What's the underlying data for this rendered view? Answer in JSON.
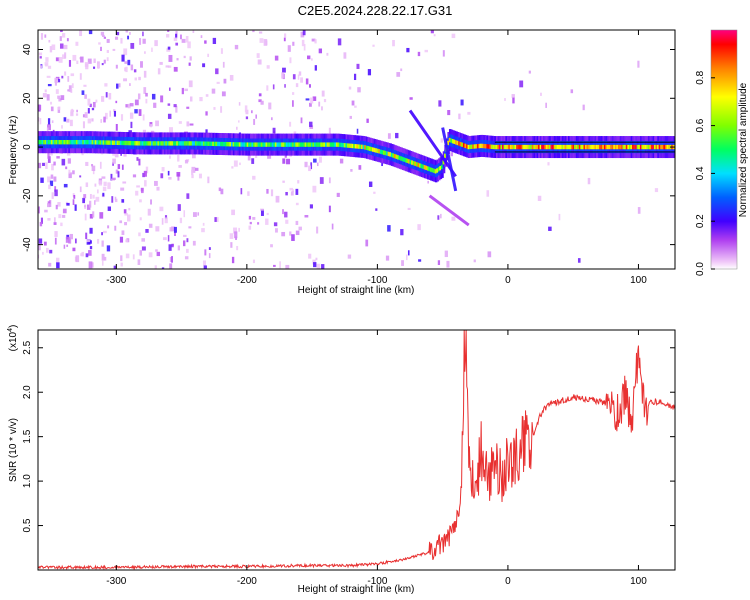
{
  "figure": {
    "title": "C2E5.2024.228.22.17.G31"
  },
  "chart_data": [
    {
      "type": "heatmap",
      "xlabel": "Height of straight line (km)",
      "ylabel": "Frequency (Hz)",
      "xlim": [
        -360,
        128
      ],
      "ylim": [
        -50,
        48
      ],
      "xticks": [
        -300,
        -200,
        -100,
        0,
        100
      ],
      "xtick_labels": [
        "-300",
        "-200",
        "-100",
        "0",
        "100"
      ],
      "yticks": [
        -40,
        -20,
        0,
        20,
        40
      ],
      "ytick_labels": [
        "-40",
        "-20",
        "0",
        "20",
        "40"
      ],
      "grid": false,
      "colorbar": {
        "label": "Normalized spectral amplitude",
        "range": [
          0,
          1
        ],
        "ticks": [
          0.0,
          0.2,
          0.4,
          0.6,
          0.8
        ],
        "tick_labels": [
          "0.0",
          "0.2",
          "0.4",
          "0.6",
          "0.8"
        ],
        "colormap": "rainbow-on-white"
      },
      "ridge": {
        "name": "",
        "x": [
          -360,
          -320,
          -280,
          -240,
          -200,
          -160,
          -130,
          -110,
          -90,
          -70,
          -60,
          -55,
          -50,
          -45,
          -40,
          -35,
          -30,
          -20,
          -10,
          0,
          30,
          60,
          90,
          128
        ],
        "y": [
          2,
          2,
          1.5,
          1.5,
          1,
          1,
          1,
          0,
          -3,
          -7,
          -9,
          -10,
          -8,
          3,
          2,
          1,
          0,
          0.5,
          0,
          0,
          0,
          0,
          0,
          0
        ]
      }
    },
    {
      "type": "line",
      "xlabel": "Height of straight line (km)",
      "ylabel": "SNR (10 * v/v)",
      "yscale_label": "(x10",
      "yscale_exp": "4",
      "xlim": [
        -360,
        128
      ],
      "ylim": [
        0,
        2.7
      ],
      "xticks": [
        -300,
        -200,
        -100,
        0,
        100
      ],
      "xtick_labels": [
        "-300",
        "-200",
        "-100",
        "0",
        "100"
      ],
      "yticks": [
        0.5,
        1.0,
        1.5,
        2.0,
        2.5
      ],
      "ytick_labels": [
        "0.5",
        "1.0",
        "1.5",
        "2.0",
        "2.5"
      ],
      "grid": false,
      "color": "#e83030",
      "series": [
        {
          "name": "",
          "x": [
            -360,
            -300,
            -250,
            -200,
            -160,
            -120,
            -100,
            -80,
            -60,
            -50,
            -40,
            -36,
            -33,
            -30,
            -25,
            -20,
            -15,
            -10,
            -5,
            0,
            10,
            20,
            25,
            30,
            40,
            50,
            60,
            70,
            80,
            85,
            90,
            95,
            100,
            105,
            110,
            120,
            128
          ],
          "y": [
            0.03,
            0.03,
            0.04,
            0.04,
            0.05,
            0.05,
            0.07,
            0.12,
            0.2,
            0.3,
            0.45,
            0.9,
            2.7,
            1.2,
            0.8,
            1.4,
            1.0,
            1.2,
            1.05,
            1.2,
            1.35,
            1.55,
            1.75,
            1.85,
            1.9,
            1.95,
            1.92,
            1.9,
            1.85,
            1.7,
            2.0,
            1.7,
            2.45,
            1.85,
            1.9,
            1.88,
            1.82
          ]
        }
      ]
    }
  ]
}
